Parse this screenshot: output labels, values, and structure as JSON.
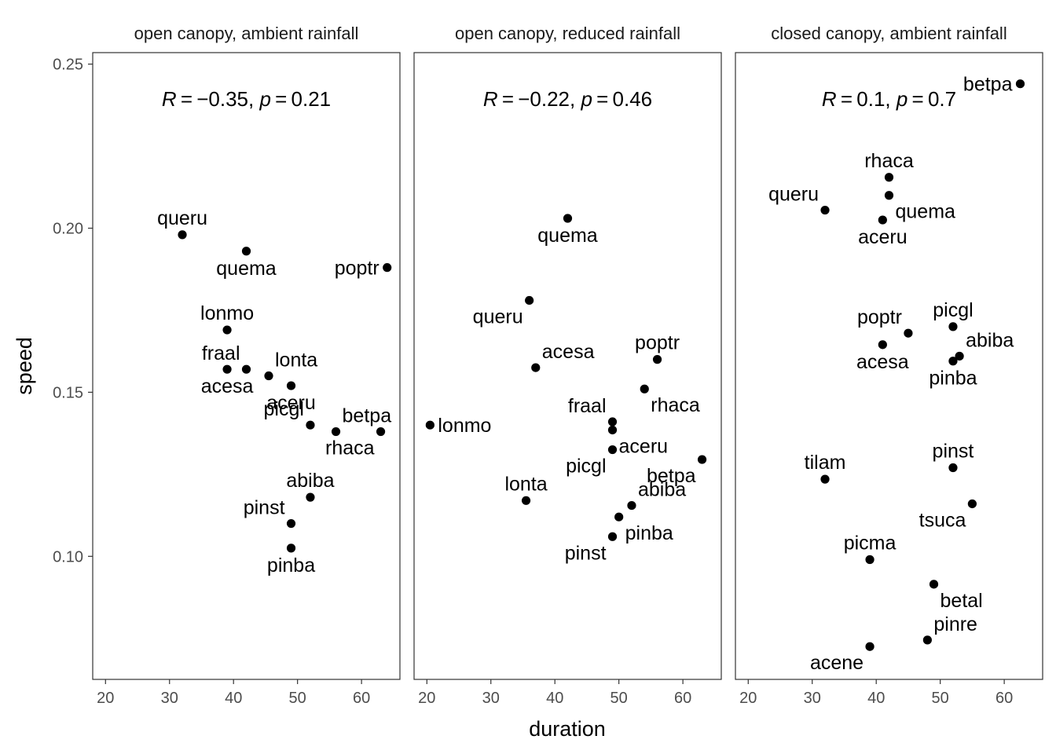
{
  "chart_data": {
    "type": "scatter",
    "xlabel": "duration",
    "ylabel": "speed",
    "xlim": [
      18,
      66
    ],
    "ylim": [
      0.0625,
      0.2535
    ],
    "x_ticks": [
      20,
      30,
      40,
      50,
      60
    ],
    "x_tick_labels": [
      "20",
      "30",
      "40",
      "50",
      "60"
    ],
    "y_ticks": [
      0.1,
      0.15,
      0.2,
      0.25
    ],
    "y_tick_labels": [
      "0.10",
      "0.15",
      "0.20",
      "0.25"
    ],
    "grid": false,
    "panels": [
      {
        "title": "open canopy, ambient rainfall",
        "annotation": {
          "R": "−0.35",
          "p": "0.21"
        },
        "points": [
          {
            "label": "queru",
            "x": 32,
            "y": 0.198,
            "pos": "above"
          },
          {
            "label": "quema",
            "x": 42,
            "y": 0.193,
            "pos": "below"
          },
          {
            "label": "poptr",
            "x": 64,
            "y": 0.188,
            "pos": "left"
          },
          {
            "label": "lonmo",
            "x": 39,
            "y": 0.169,
            "pos": "above"
          },
          {
            "label": "fraal",
            "x": 42,
            "y": 0.157,
            "pos": "aboveleft"
          },
          {
            "label": "acesa",
            "x": 39,
            "y": 0.157,
            "pos": "below"
          },
          {
            "label": "lonta",
            "x": 45.5,
            "y": 0.155,
            "pos": "aboveright"
          },
          {
            "label": "aceru",
            "x": 49,
            "y": 0.152,
            "pos": "below"
          },
          {
            "label": "picgl",
            "x": 52,
            "y": 0.14,
            "pos": "aboveleft"
          },
          {
            "label": "betpa",
            "x": 56,
            "y": 0.138,
            "pos": "aboveright"
          },
          {
            "label": "rhaca",
            "x": 63,
            "y": 0.138,
            "pos": "belowleft"
          },
          {
            "label": "abiba",
            "x": 52,
            "y": 0.118,
            "pos": "above"
          },
          {
            "label": "pinst",
            "x": 49,
            "y": 0.11,
            "pos": "aboveleft"
          },
          {
            "label": "pinba",
            "x": 49,
            "y": 0.1025,
            "pos": "below"
          }
        ]
      },
      {
        "title": "open canopy, reduced rainfall",
        "annotation": {
          "R": "−0.22",
          "p": "0.46"
        },
        "points": [
          {
            "label": "quema",
            "x": 42,
            "y": 0.203,
            "pos": "below"
          },
          {
            "label": "queru",
            "x": 36,
            "y": 0.178,
            "pos": "belowleft"
          },
          {
            "label": "acesa",
            "x": 37,
            "y": 0.1575,
            "pos": "aboveright"
          },
          {
            "label": "poptr",
            "x": 56,
            "y": 0.16,
            "pos": "above"
          },
          {
            "label": "rhaca",
            "x": 54,
            "y": 0.151,
            "pos": "belowright"
          },
          {
            "label": "lonmo",
            "x": 20.5,
            "y": 0.14,
            "pos": "right"
          },
          {
            "label": "fraal",
            "x": 49,
            "y": 0.141,
            "pos": "aboveleft"
          },
          {
            "label": "aceru",
            "x": 49,
            "y": 0.1385,
            "pos": "belowright"
          },
          {
            "label": "picgl",
            "x": 49,
            "y": 0.1325,
            "pos": "belowleft"
          },
          {
            "label": "betpa",
            "x": 63,
            "y": 0.1295,
            "pos": "belowleft"
          },
          {
            "label": "lonta",
            "x": 35.5,
            "y": 0.117,
            "pos": "above"
          },
          {
            "label": "abiba",
            "x": 52,
            "y": 0.1155,
            "pos": "aboveright"
          },
          {
            "label": "pinba",
            "x": 50,
            "y": 0.112,
            "pos": "belowright"
          },
          {
            "label": "pinst",
            "x": 49,
            "y": 0.106,
            "pos": "belowleft"
          }
        ]
      },
      {
        "title": "closed canopy, ambient rainfall",
        "annotation": {
          "R": "0.1",
          "p": "0.7"
        },
        "points": [
          {
            "label": "betpa",
            "x": 62.5,
            "y": 0.244,
            "pos": "left"
          },
          {
            "label": "rhaca",
            "x": 42,
            "y": 0.2155,
            "pos": "above"
          },
          {
            "label": "queru",
            "x": 32,
            "y": 0.2055,
            "pos": "aboveleft"
          },
          {
            "label": "quema",
            "x": 42,
            "y": 0.21,
            "pos": "belowright"
          },
          {
            "label": "aceru",
            "x": 41,
            "y": 0.2025,
            "pos": "below"
          },
          {
            "label": "picgl",
            "x": 52,
            "y": 0.17,
            "pos": "above"
          },
          {
            "label": "poptr",
            "x": 45,
            "y": 0.168,
            "pos": "aboveleft"
          },
          {
            "label": "acesa",
            "x": 41,
            "y": 0.1645,
            "pos": "below"
          },
          {
            "label": "abiba",
            "x": 53,
            "y": 0.161,
            "pos": "aboveright"
          },
          {
            "label": "pinba",
            "x": 52,
            "y": 0.1595,
            "pos": "below"
          },
          {
            "label": "pinst",
            "x": 52,
            "y": 0.127,
            "pos": "above"
          },
          {
            "label": "tilam",
            "x": 32,
            "y": 0.1235,
            "pos": "above"
          },
          {
            "label": "tsuca",
            "x": 55,
            "y": 0.116,
            "pos": "belowleft"
          },
          {
            "label": "picma",
            "x": 39,
            "y": 0.099,
            "pos": "above"
          },
          {
            "label": "betal",
            "x": 49,
            "y": 0.0915,
            "pos": "belowright"
          },
          {
            "label": "pinre",
            "x": 48,
            "y": 0.0745,
            "pos": "aboveright"
          },
          {
            "label": "acene",
            "x": 39,
            "y": 0.0725,
            "pos": "belowleft"
          }
        ]
      }
    ]
  }
}
